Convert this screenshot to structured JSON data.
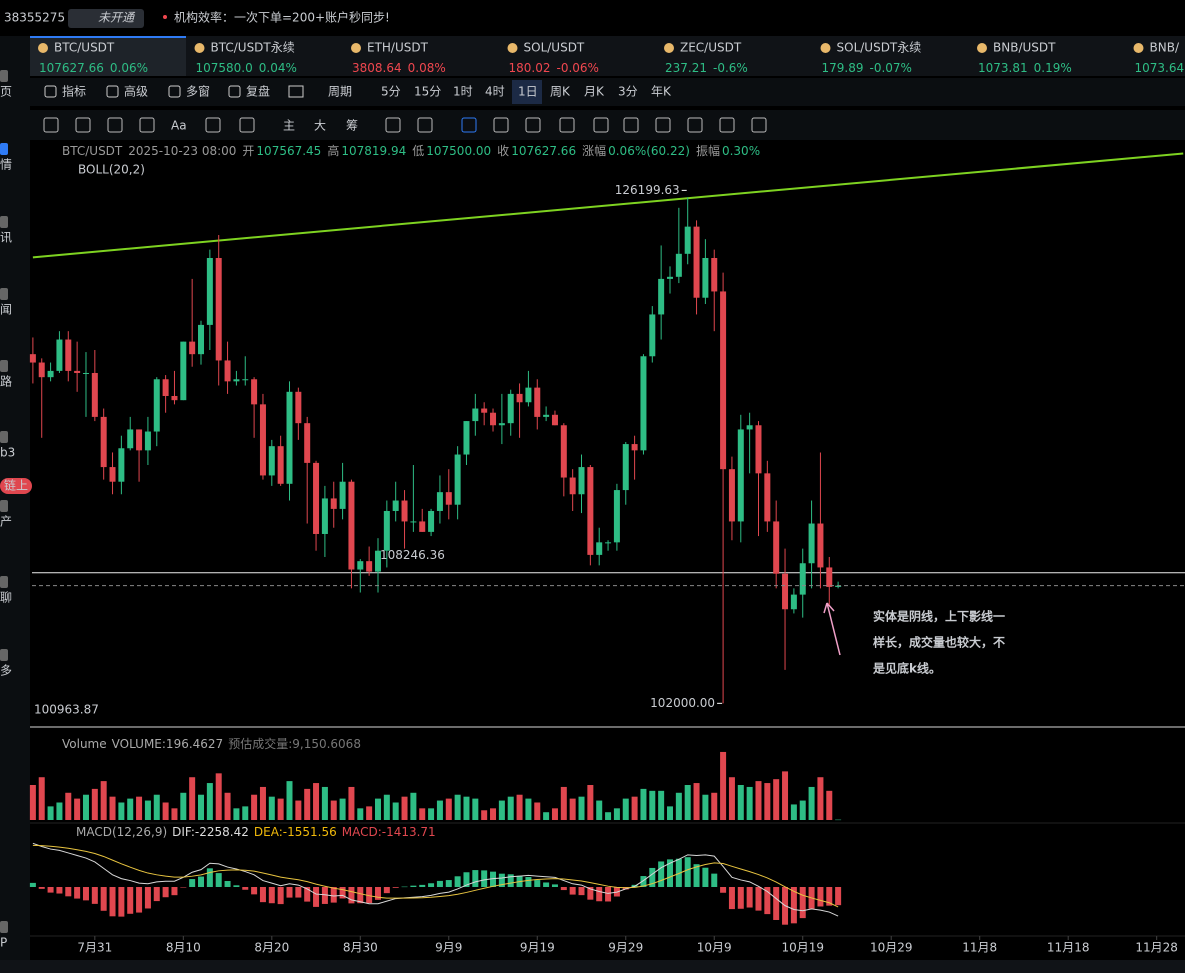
{
  "top_bar": {
    "account": "38355275",
    "status": "未开通",
    "notice": "机构效率：一次下单=200+账户秒同步!"
  },
  "sidebar": [
    "页",
    "情",
    "讯",
    "闻",
    "路",
    "b3",
    "链上",
    "产",
    "聊",
    "多",
    "P"
  ],
  "tickers": [
    {
      "symbol": "BTC/USDT",
      "price": "107627.66",
      "change": "0.06%",
      "color": "#2ebd85"
    },
    {
      "symbol": "BTC/USDT永续",
      "price": "107580.0",
      "change": "0.04%",
      "color": "#2ebd85"
    },
    {
      "symbol": "ETH/USDT",
      "price": "3808.64",
      "change": "0.08%",
      "color": "#f0474f"
    },
    {
      "symbol": "SOL/USDT",
      "price": "180.02",
      "change": "-0.06%",
      "color": "#f0474f"
    },
    {
      "symbol": "ZEC/USDT",
      "price": "237.21",
      "change": "-0.6%",
      "color": "#2ebd85"
    },
    {
      "symbol": "SOL/USDT永续",
      "price": "179.89",
      "change": "-0.07%",
      "color": "#2ebd85"
    },
    {
      "symbol": "BNB/USDT",
      "price": "1073.81",
      "change": "0.19%",
      "color": "#2ebd85"
    },
    {
      "symbol": "BNB/",
      "price": "1073.64",
      "change": "",
      "color": "#2ebd85"
    }
  ],
  "toolbar": [
    "指标",
    "高级",
    "多窗",
    "复盘",
    "周期",
    "5分",
    "15分",
    "1时",
    "4时",
    "1日",
    "周K",
    "月K",
    "3分",
    "年K"
  ],
  "tools": [
    "Aa",
    "主",
    "大",
    "筹"
  ],
  "chart_data": {
    "type": "candlestick",
    "info": {
      "symbol": "BTC/USDT",
      "time": "2025-10-23 08:00",
      "items": [
        [
          "开",
          "107567.45"
        ],
        [
          "高",
          "107819.94"
        ],
        [
          "低",
          "107500.00"
        ],
        [
          "收",
          "107627.66"
        ],
        [
          "涨幅",
          "0.06%(60.22)"
        ],
        [
          "振幅",
          "0.30%"
        ]
      ]
    },
    "indicator": "BOLL(20,2)",
    "up_color": "#2ebd85",
    "down_color": "#e0474f",
    "xlim": [
      -0.1,
      130.2
    ],
    "xticks": [
      {
        "value": 7,
        "label": "7月31"
      },
      {
        "value": 17,
        "label": "8月10"
      },
      {
        "value": 27,
        "label": "8月20"
      },
      {
        "value": 37,
        "label": "8月30"
      },
      {
        "value": 47,
        "label": "9月9"
      },
      {
        "value": 57,
        "label": "9月19"
      },
      {
        "value": 67,
        "label": "9月29"
      },
      {
        "value": 77,
        "label": "10月9"
      },
      {
        "value": 87,
        "label": "10月19"
      },
      {
        "value": 97,
        "label": "10月29"
      },
      {
        "value": 107,
        "label": "11月8"
      },
      {
        "value": 117,
        "label": "11月18"
      },
      {
        "value": 127,
        "label": "11月28"
      }
    ],
    "ylim": [
      100963.87,
      128800
    ],
    "candles": [
      [
        118700,
        119500,
        117300,
        118300
      ],
      [
        118300,
        118500,
        114700,
        117600
      ],
      [
        117600,
        118300,
        117400,
        117900
      ],
      [
        117900,
        119800,
        117800,
        119400
      ],
      [
        119400,
        119800,
        117400,
        117900
      ],
      [
        117900,
        119300,
        116900,
        117800
      ],
      [
        117800,
        118800,
        115700,
        117800
      ],
      [
        117800,
        118900,
        115500,
        115700
      ],
      [
        115700,
        116100,
        112700,
        113300
      ],
      [
        113300,
        114000,
        112000,
        112600
      ],
      [
        112600,
        114800,
        112000,
        114200
      ],
      [
        114200,
        115700,
        114100,
        115100
      ],
      [
        115100,
        115100,
        112600,
        114100
      ],
      [
        114100,
        115700,
        113400,
        115000
      ],
      [
        115000,
        117600,
        114300,
        117500
      ],
      [
        117500,
        117700,
        115900,
        116700
      ],
      [
        116700,
        117900,
        116300,
        116500
      ],
      [
        116500,
        119300,
        116500,
        119300
      ],
      [
        119300,
        122300,
        118100,
        118700
      ],
      [
        118700,
        120300,
        118200,
        120100
      ],
      [
        120100,
        123700,
        118900,
        123300
      ],
      [
        123300,
        124400,
        117200,
        118400
      ],
      [
        118400,
        119300,
        116800,
        117400
      ],
      [
        117400,
        117900,
        117200,
        117500
      ],
      [
        117500,
        118600,
        117200,
        117500
      ],
      [
        117500,
        117600,
        114700,
        116300
      ],
      [
        116300,
        116800,
        112700,
        112900
      ],
      [
        112900,
        114600,
        112400,
        114300
      ],
      [
        114300,
        114800,
        112400,
        112500
      ],
      [
        112500,
        117400,
        111700,
        116900
      ],
      [
        116900,
        117100,
        114600,
        115400
      ],
      [
        115400,
        115700,
        110600,
        113500
      ],
      [
        113500,
        113600,
        109300,
        110100
      ],
      [
        110100,
        112400,
        109000,
        111800
      ],
      [
        111800,
        112600,
        110400,
        111300
      ],
      [
        111300,
        113500,
        110800,
        112600
      ],
      [
        112600,
        112700,
        107500,
        108400
      ],
      [
        108400,
        108900,
        107300,
        108800
      ],
      [
        108800,
        109500,
        108100,
        108300
      ],
      [
        108300,
        109900,
        107300,
        109300
      ],
      [
        109300,
        111700,
        108500,
        111200
      ],
      [
        111200,
        112600,
        110700,
        111700
      ],
      [
        111700,
        112200,
        109400,
        110700
      ],
      [
        110700,
        113400,
        110200,
        110700
      ],
      [
        110700,
        111300,
        110200,
        110200
      ],
      [
        110200,
        111300,
        110000,
        111200
      ],
      [
        111200,
        112900,
        110600,
        112100
      ],
      [
        112100,
        113200,
        110800,
        111500
      ],
      [
        111500,
        114300,
        110800,
        113900
      ],
      [
        113900,
        115500,
        113400,
        115500
      ],
      [
        115500,
        116800,
        114800,
        116100
      ],
      [
        116100,
        116400,
        115300,
        115900
      ],
      [
        115900,
        116100,
        115000,
        115300
      ],
      [
        115300,
        116800,
        114400,
        115400
      ],
      [
        115400,
        117000,
        114800,
        116800
      ],
      [
        116800,
        117300,
        114700,
        116400
      ],
      [
        116400,
        117900,
        116200,
        117100
      ],
      [
        117100,
        117500,
        115100,
        115700
      ],
      [
        115700,
        116200,
        115500,
        115800
      ],
      [
        115800,
        116000,
        115300,
        115300
      ],
      [
        115300,
        115400,
        111900,
        112800
      ],
      [
        112800,
        113200,
        111200,
        112000
      ],
      [
        112000,
        113900,
        111100,
        113300
      ],
      [
        113300,
        113400,
        108600,
        109100
      ],
      [
        109100,
        110400,
        108600,
        109700
      ],
      [
        109700,
        109800,
        109300,
        109700
      ],
      [
        109700,
        112500,
        109300,
        112200
      ],
      [
        112200,
        114500,
        111500,
        114400
      ],
      [
        114400,
        114800,
        112700,
        114100
      ],
      [
        114100,
        118700,
        113900,
        118600
      ],
      [
        118600,
        121000,
        118300,
        120600
      ],
      [
        120600,
        123900,
        119400,
        122300
      ],
      [
        122300,
        122900,
        121600,
        122400
      ],
      [
        122400,
        125700,
        122100,
        123500
      ],
      [
        123500,
        126199.63,
        123000,
        124800
      ],
      [
        124800,
        125100,
        120600,
        121400
      ],
      [
        121400,
        124200,
        121100,
        123300
      ],
      [
        123300,
        123700,
        119800,
        121700
      ],
      [
        121700,
        122600,
        102000,
        113200
      ],
      [
        113200,
        113800,
        109800,
        110700
      ],
      [
        110700,
        115800,
        109700,
        115100
      ],
      [
        115100,
        115900,
        113000,
        115300
      ],
      [
        115300,
        115500,
        110000,
        113000
      ],
      [
        113000,
        113600,
        110200,
        110700
      ],
      [
        110700,
        111700,
        107500,
        108200
      ],
      [
        108200,
        109400,
        103600,
        106500
      ],
      [
        106500,
        107500,
        106300,
        107200
      ],
      [
        107200,
        109400,
        106100,
        108700
      ],
      [
        108700,
        111700,
        107500,
        110600
      ],
      [
        110600,
        114000,
        107500,
        108500
      ],
      [
        108500,
        109000,
        106700,
        107567.45
      ],
      [
        107567.45,
        107819.94,
        107500,
        107627.66
      ]
    ],
    "max_label": {
      "value": 126199.63,
      "label": "126199.63"
    },
    "min_label": {
      "value": 102000,
      "label": "102000.00"
    },
    "hline": 108246.36,
    "trendline": {
      "x": [
        0,
        130
      ],
      "y": [
        123330,
        128300
      ],
      "color": "#7ed321"
    },
    "note": [
      "实体是阴线，上下影线一",
      "样长，成交量也较大，不",
      "是见底k线。"
    ],
    "volume": {
      "header": [
        "Volume",
        "VOLUME:196.4627",
        "预估成交量:9,150.6068"
      ],
      "ylim": [
        0,
        36000
      ],
      "values": [
        18000,
        22000,
        7000,
        9000,
        14000,
        11000,
        13000,
        16000,
        20000,
        12000,
        9000,
        11000,
        12000,
        10000,
        13000,
        9000,
        6000,
        14000,
        22000,
        13000,
        19000,
        24000,
        14000,
        6000,
        7000,
        13000,
        17000,
        12000,
        11000,
        20000,
        10000,
        16000,
        19000,
        17000,
        10000,
        11000,
        17000,
        6000,
        7000,
        11000,
        13000,
        9000,
        12000,
        14000,
        6000,
        6000,
        10000,
        11000,
        13000,
        12000,
        11000,
        5000,
        6000,
        10000,
        12000,
        13000,
        11000,
        9000,
        4000,
        6000,
        17000,
        11000,
        12000,
        18000,
        10000,
        4000,
        6000,
        11000,
        12000,
        16000,
        15000,
        15000,
        7000,
        14000,
        18000,
        19000,
        13000,
        14000,
        35000,
        22000,
        18000,
        17000,
        20000,
        19000,
        21000,
        25000,
        8000,
        10000,
        17000,
        22000,
        15000,
        196.4627
      ]
    },
    "macd": {
      "header": [
        "MACD(12,26,9)",
        "DIF:-2258.42",
        "DEA:-1551.56",
        "MACD:-1413.71"
      ],
      "ylim": [
        -3500,
        3500
      ],
      "series": [
        {
          "name": "DIF",
          "color": "#d8d8d8",
          "values": [
            3400,
            3150,
            2950,
            2850,
            2650,
            2450,
            2250,
            1950,
            1450,
            950,
            650,
            500,
            300,
            250,
            400,
            450,
            450,
            750,
            1150,
            1350,
            1850,
            1800,
            1550,
            1400,
            1200,
            950,
            500,
            300,
            100,
            250,
            150,
            -150,
            -550,
            -600,
            -700,
            -650,
            -1000,
            -1150,
            -1300,
            -1300,
            -1100,
            -900,
            -850,
            -800,
            -750,
            -650,
            -500,
            -400,
            -150,
            150,
            400,
            550,
            650,
            700,
            800,
            850,
            900,
            850,
            800,
            750,
            500,
            250,
            150,
            -150,
            -350,
            -500,
            -400,
            -150,
            50,
            500,
            1000,
            1500,
            1850,
            2150,
            2500,
            2450,
            2500,
            2400,
            1600,
            750,
            550,
            400,
            50,
            -350,
            -900,
            -1450,
            -1750,
            -1850,
            -1700,
            -1800,
            -1950,
            -2258.42
          ]
        },
        {
          "name": "DEA",
          "color": "#e8c440",
          "values": [
            3240,
            3222,
            3168,
            3104,
            3013,
            2900,
            2770,
            2606,
            2375,
            2090,
            1802,
            1542,
            1294,
            1085,
            948,
            848,
            768,
            764,
            841,
            943,
            1124,
            1259,
            1317,
            1334,
            1307,
            1236,
            1089,
            931,
            765,
            662,
            560,
            418,
            224,
            59,
            -93,
            -204,
            -363,
            -520,
            -676,
            -801,
            -861,
            -869,
            -865,
            -852,
            -832,
            -796,
            -737,
            -670,
            -566,
            -423,
            -258,
            -96,
            53,
            182,
            306,
            415,
            512,
            580,
            624,
            649,
            619,
            545,
            466,
            343,
            204,
            63,
            -30,
            -54,
            -33,
            74,
            259,
            507,
            776,
            1051,
            1341,
            1563,
            1750,
            1880,
            1824,
            1609,
            1397,
            1198,
            968,
            704,
            383,
            16,
            -337,
            -640,
            -852,
            -1042,
            -1224,
            -1551.56
          ]
        }
      ],
      "hist": [
        320,
        -144,
        -436,
        -508,
        -726,
        -900,
        -1040,
        -1312,
        -1850,
        -2280,
        -2304,
        -2084,
        -1988,
        -1670,
        -1096,
        -796,
        -636,
        -28,
        618,
        814,
        1452,
        1082,
        466,
        132,
        -214,
        -572,
        -1178,
        -1262,
        -1330,
        -824,
        -820,
        -1136,
        -1548,
        -1318,
        -1214,
        -892,
        -1274,
        -1260,
        -1248,
        -998,
        -478,
        -62,
        30,
        104,
        164,
        292,
        474,
        540,
        832,
        1146,
        1316,
        1292,
        1194,
        1036,
        988,
        870,
        776,
        540,
        352,
        202,
        -238,
        -590,
        -632,
        -986,
        -1108,
        -1126,
        -740,
        -192,
        166,
        852,
        1482,
        1986,
        2148,
        2198,
        2318,
        1774,
        1500,
        1040,
        -448,
        -1718,
        -1694,
        -1596,
        -1836,
        -2108,
        -2566,
        -2932,
        -2826,
        -2420,
        -1696,
        -1516,
        -1452,
        -1413.71
      ]
    }
  }
}
